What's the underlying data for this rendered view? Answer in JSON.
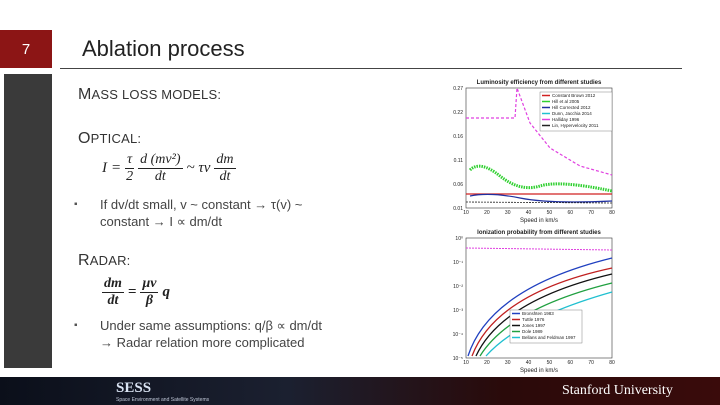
{
  "slide_number": "7",
  "title": "Ablation process",
  "sections": {
    "mass_loss": "MASS LOSS MODELS:",
    "optical": "OPTICAL:",
    "radar": "RADAR:"
  },
  "optical_formula": {
    "lhs": "I",
    "eq": "=",
    "coef_num": "τ",
    "coef_den": "2",
    "frac1_num": "d (mv²)",
    "frac1_den": "dt",
    "approx": "~ τv",
    "frac2_num": "dm",
    "frac2_den": "dt"
  },
  "optical_bullet": "If dv/dt small, v ~ constant → τ(v) ~ constant → I ∝ dm/dt",
  "radar_formula": {
    "lhs_num": "dm",
    "lhs_den": "dt",
    "eq": "=",
    "rhs_num": "μv",
    "rhs_den": "β",
    "q": "q"
  },
  "radar_bullet": [
    "Under same assumptions: q/β ∝ dm/dt",
    "→ Radar relation more complicated"
  ],
  "figures": [
    {
      "title": "Luminosity efficiency from different studies",
      "xlabel": "Speed in km/s",
      "xticks": [
        "10",
        "20",
        "30",
        "40",
        "50",
        "60",
        "70",
        "80"
      ],
      "yticks": [
        "0.27",
        "0.22",
        "0.16",
        "0.11",
        "0.06",
        "0.01"
      ],
      "legend": [
        {
          "name": "Constant Brown 2012",
          "color": "#d02020"
        },
        {
          "name": "Hill et al 2005",
          "color": "#30d030"
        },
        {
          "name": "Hill Corrected 2012",
          "color": "#2030a0"
        },
        {
          "name": "Dunn, Jacchia 2014",
          "color": "#20c0d0"
        },
        {
          "name": "Halliday 1996",
          "color": "#e040e0"
        },
        {
          "name": "Lin, Hypervelocity 2011",
          "color": "#222222"
        }
      ]
    },
    {
      "title": "Ionization probability from different studies",
      "xlabel": "Speed in km/s",
      "xticks": [
        "10",
        "20",
        "30",
        "40",
        "50",
        "60",
        "70",
        "80"
      ],
      "yticks": [
        "10⁰",
        "10⁻¹",
        "10⁻²",
        "10⁻³",
        "10⁻⁴",
        "10⁻⁵"
      ],
      "legend": [
        {
          "name": "Bronshten 1983",
          "color": "#2040c0"
        },
        {
          "name": "Tuttle 1976",
          "color": "#c02020"
        },
        {
          "name": "Jones 1997",
          "color": "#111111"
        },
        {
          "name": "Dole 1989",
          "color": "#20a040"
        },
        {
          "name": "Bellans and Feldman 1997",
          "color": "#20c0d0"
        }
      ]
    }
  ],
  "footer": {
    "logo": "SESS",
    "logo_subtitle": "Space Environment and Satellite Systems",
    "university": "Stanford University"
  }
}
